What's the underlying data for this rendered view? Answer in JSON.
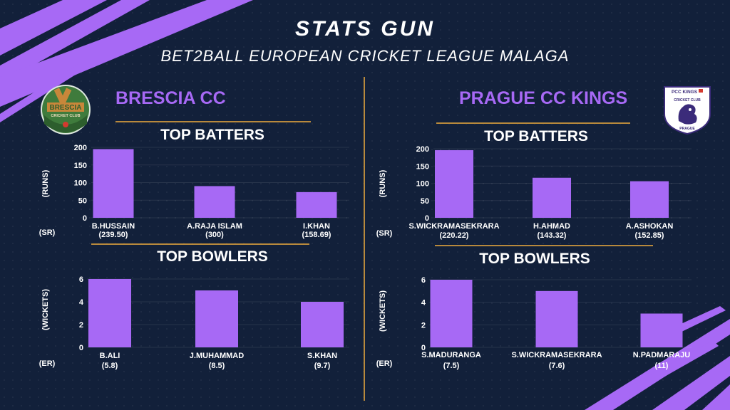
{
  "header": {
    "title": "STATS GUN",
    "subtitle": "BET2BALL EUROPEAN CRICKET LEAGUE MALAGA"
  },
  "colors": {
    "background": "#12203a",
    "accent": "#a769f5",
    "bar": "#a769f5",
    "rule": "#b8893c"
  },
  "left_team": {
    "name": "BRESCIA CC",
    "logo_icon": "brescia-cricket-club-logo",
    "logo_text": [
      "BRESCIA",
      "CRICKET CLUB"
    ],
    "batters_title": "TOP BATTERS",
    "bowlers_title": "TOP BOWLERS"
  },
  "right_team": {
    "name": "PRAGUE CC KINGS",
    "logo_icon": "pcc-kings-lion-logo",
    "logo_text": [
      "PCC KINGS",
      "CRICKET CLUB",
      "PRAGUE"
    ],
    "batters_title": "TOP BATTERS",
    "bowlers_title": "TOP BOWLERS"
  },
  "chart_data": [
    {
      "id": "left_batters",
      "type": "bar",
      "title": "TOP BATTERS",
      "ylabel": "(RUNS)",
      "sublabel_prefix": "(SR)",
      "categories": [
        "B.HUSSAIN",
        "A.RAJA ISLAM",
        "I.KHAN"
      ],
      "sublabels": [
        "(239.50)",
        "(300)",
        "(158.69)"
      ],
      "values": [
        195,
        90,
        73
      ],
      "ylim": [
        0,
        200
      ],
      "yticks": [
        "0",
        "50",
        "100",
        "150",
        "200"
      ],
      "grid": true
    },
    {
      "id": "left_bowlers",
      "type": "bar",
      "title": "TOP BOWLERS",
      "ylabel": "(WICKETS)",
      "sublabel_prefix": "(ER)",
      "categories": [
        "B.ALI",
        "J.MUHAMMAD",
        "S.KHAN"
      ],
      "sublabels": [
        "(5.8)",
        "(8.5)",
        "(9.7)"
      ],
      "values": [
        6,
        5,
        4
      ],
      "ylim": [
        0,
        6
      ],
      "yticks": [
        "0",
        "2",
        "4",
        "6"
      ],
      "grid": true
    },
    {
      "id": "right_batters",
      "type": "bar",
      "title": "TOP BATTERS",
      "ylabel": "(RUNS)",
      "sublabel_prefix": "(SR)",
      "categories": [
        "S.WICKRAMASEKRARA",
        "H.AHMAD",
        "A.ASHOKAN"
      ],
      "sublabels": [
        "(220.22)",
        "(143.32)",
        "(152.85)"
      ],
      "values": [
        196,
        116,
        106
      ],
      "ylim": [
        0,
        200
      ],
      "yticks": [
        "0",
        "50",
        "100",
        "150",
        "200"
      ],
      "grid": true
    },
    {
      "id": "right_bowlers",
      "type": "bar",
      "title": "TOP BOWLERS",
      "ylabel": "(WICKETS)",
      "sublabel_prefix": "(ER)",
      "categories": [
        "S.MADURANGA",
        "S.WICKRAMASEKRARA",
        "N.PADMARAJU"
      ],
      "sublabels": [
        "(7.5)",
        "(7.6)",
        "(11)"
      ],
      "values": [
        6,
        5,
        3
      ],
      "ylim": [
        0,
        6
      ],
      "yticks": [
        "0",
        "2",
        "4",
        "6"
      ],
      "grid": true
    }
  ]
}
